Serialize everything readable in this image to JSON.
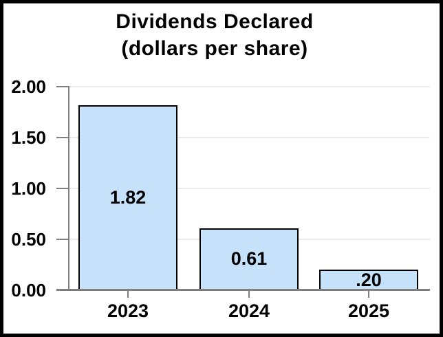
{
  "chart_data": {
    "type": "bar",
    "title": "Dividends Declared",
    "subtitle": "(dollars per share)",
    "categories": [
      "2023",
      "2024",
      "2025"
    ],
    "values": [
      1.82,
      0.61,
      0.2
    ],
    "bar_labels": [
      "1.82",
      "0.61",
      ".20"
    ],
    "xlabel": "",
    "ylabel": "",
    "ylim": [
      0.0,
      2.0
    ],
    "ytick_interval": 0.5,
    "ytick_labels": [
      "0.00",
      "0.50",
      "1.00",
      "1.50",
      "2.00"
    ],
    "grid": true,
    "legend": false,
    "colors": {
      "bar_fill": "#C5E2FA",
      "bar_border": "#000000",
      "axis": "#7F7F7F",
      "gridline": "#EBEBEB",
      "text": "#000000",
      "frame_border": "#000000",
      "background": "#FFFFFF"
    }
  }
}
